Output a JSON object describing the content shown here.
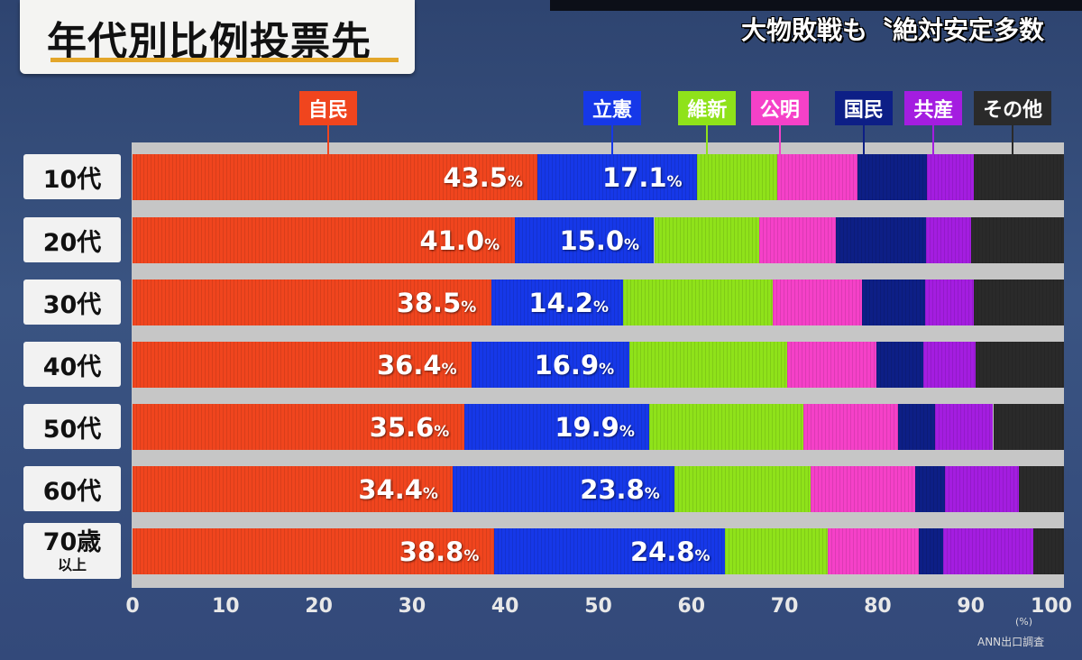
{
  "title": "年代別比例投票先",
  "headline": "大物敗戦も〝絶対安定多数",
  "source": "ANN出口調査",
  "chart_data": {
    "type": "bar",
    "stacked": true,
    "orientation": "horizontal",
    "categories": [
      "10代",
      "20代",
      "30代",
      "40代",
      "50代",
      "60代",
      "70歳以上"
    ],
    "category_lines": [
      [
        "10代"
      ],
      [
        "20代"
      ],
      [
        "30代"
      ],
      [
        "40代"
      ],
      [
        "50代"
      ],
      [
        "60代"
      ],
      [
        "70歳",
        "以上"
      ]
    ],
    "xlim": [
      0,
      100
    ],
    "x_ticks": [
      "0",
      "10",
      "20",
      "30",
      "40",
      "50",
      "60",
      "70",
      "80",
      "90",
      "100"
    ],
    "x_unit": "(%)",
    "percent_symbol": "%",
    "series": [
      {
        "name": "自民",
        "color": "#f0451e",
        "labeled": true,
        "values": [
          43.5,
          41.0,
          38.5,
          36.4,
          35.6,
          34.4,
          38.8
        ]
      },
      {
        "name": "立憲",
        "color": "#1638e8",
        "labeled": true,
        "values": [
          17.1,
          15.0,
          14.2,
          16.9,
          19.9,
          23.8,
          24.8
        ]
      },
      {
        "name": "維新",
        "color": "#8fe21a",
        "labeled": false,
        "values": [
          8.6,
          11.3,
          16.0,
          17.0,
          16.5,
          14.6,
          11.0
        ]
      },
      {
        "name": "公明",
        "color": "#f541c8",
        "labeled": false,
        "values": [
          8.6,
          8.2,
          9.6,
          9.6,
          10.2,
          11.2,
          9.8
        ]
      },
      {
        "name": "国民",
        "color": "#0d1f86",
        "labeled": false,
        "values": [
          7.5,
          9.7,
          6.8,
          5.0,
          4.0,
          3.2,
          2.6
        ]
      },
      {
        "name": "共産",
        "color": "#a41de0",
        "labeled": false,
        "values": [
          5.0,
          4.8,
          5.2,
          5.6,
          6.2,
          8.0,
          9.7
        ]
      },
      {
        "name": "その他",
        "color": "#2a2a2a",
        "labeled": false,
        "values": [
          9.7,
          10.0,
          9.7,
          9.5,
          7.6,
          4.8,
          3.3
        ]
      }
    ],
    "legend": [
      {
        "series": "自民",
        "at": 21.0
      },
      {
        "series": "立憲",
        "at": 51.5
      },
      {
        "series": "維新",
        "at": 61.7
      },
      {
        "series": "公明",
        "at": 69.5
      },
      {
        "series": "国民",
        "at": 78.5
      },
      {
        "series": "共産",
        "at": 86.0
      },
      {
        "series": "その他",
        "at": 94.5
      }
    ]
  }
}
